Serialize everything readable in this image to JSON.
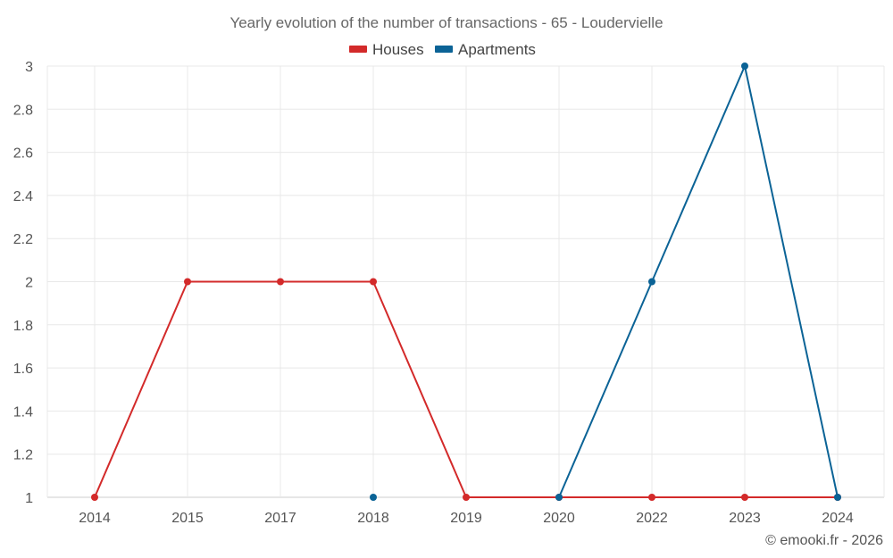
{
  "chart_data": {
    "type": "line",
    "title": "Yearly evolution of the number of transactions - 65 - Loudervielle",
    "categories": [
      "2014",
      "2015",
      "2017",
      "2018",
      "2019",
      "2020",
      "2022",
      "2023",
      "2024"
    ],
    "series": [
      {
        "name": "Houses",
        "color": "#d32a2a",
        "values": [
          1,
          2,
          2,
          2,
          1,
          1,
          1,
          1,
          1
        ]
      },
      {
        "name": "Apartments",
        "color": "#0b6396",
        "values": [
          null,
          null,
          null,
          1,
          null,
          1,
          2,
          3,
          1
        ]
      }
    ],
    "ylim": [
      1,
      3
    ],
    "yticks": [
      "1",
      "1.2",
      "1.4",
      "1.6",
      "1.8",
      "2",
      "2.2",
      "2.4",
      "2.6",
      "2.8",
      "3"
    ],
    "xlabel": "",
    "ylabel": "",
    "grid": true,
    "legend_position": "top-center",
    "credit": "© emooki.fr - 2026"
  }
}
